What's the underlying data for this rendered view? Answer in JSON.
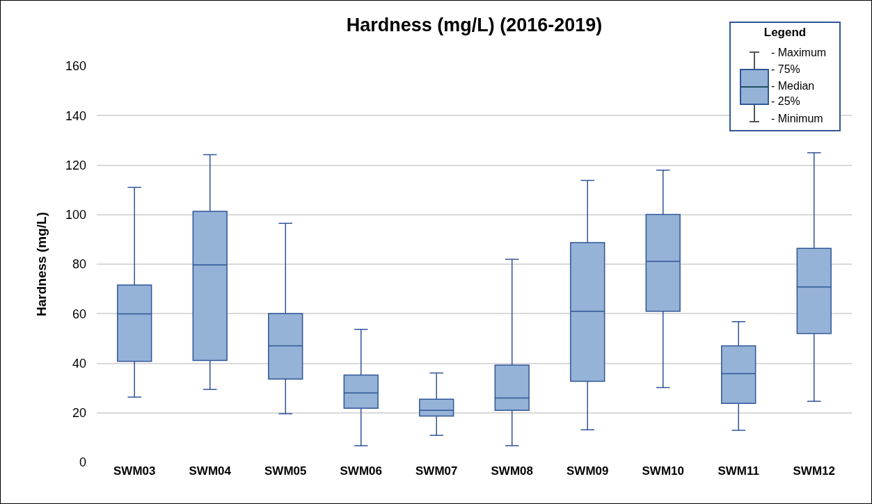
{
  "chart_data": {
    "type": "box",
    "title": "Hardness (mg/L) (2016-2019)",
    "ylabel": "Hardness (mg/L)",
    "categories": [
      "SWM03",
      "SWM04",
      "SWM05",
      "SWM06",
      "SWM07",
      "SWM08",
      "SWM09",
      "SWM10",
      "SWM11",
      "SWM12"
    ],
    "color": "#95b3d7",
    "boxes": [
      {
        "low": 26.3,
        "q1": 40.8,
        "median": 59.9,
        "q3": 71.6,
        "high": 111
      },
      {
        "low": 29.4,
        "q1": 41.1,
        "median": 79.7,
        "q3": 101.3,
        "high": 124.2
      },
      {
        "low": 19.6,
        "q1": 33.6,
        "median": 47,
        "q3": 60.1,
        "high": 96.5
      },
      {
        "low": 6.7,
        "q1": 21.8,
        "median": 28,
        "q3": 35.2,
        "high": 53.7
      },
      {
        "low": 10.9,
        "q1": 18.7,
        "median": 21,
        "q3": 25.5,
        "high": 36.1
      },
      {
        "low": 6.7,
        "q1": 21,
        "median": 26,
        "q3": 39.2,
        "high": 82
      },
      {
        "low": 13.1,
        "q1": 32.7,
        "median": 61,
        "q3": 88.7,
        "high": 113.8
      },
      {
        "low": 30.2,
        "q1": 61,
        "median": 81.1,
        "q3": 100.1,
        "high": 118
      },
      {
        "low": 12.9,
        "q1": 23.8,
        "median": 35.8,
        "q3": 47,
        "high": 56.8
      },
      {
        "low": 24.6,
        "q1": 52,
        "median": 70.8,
        "q3": 86.4,
        "high": 125
      }
    ],
    "ylim": [
      0,
      160
    ],
    "yticks": [
      0,
      20,
      40,
      60,
      80,
      100,
      120,
      140,
      160
    ],
    "grid": "y",
    "legend_title": "Legend",
    "annotations": [
      "- Maximum",
      "- 75%",
      "- Median",
      "- 25%",
      "- Minimum"
    ]
  }
}
